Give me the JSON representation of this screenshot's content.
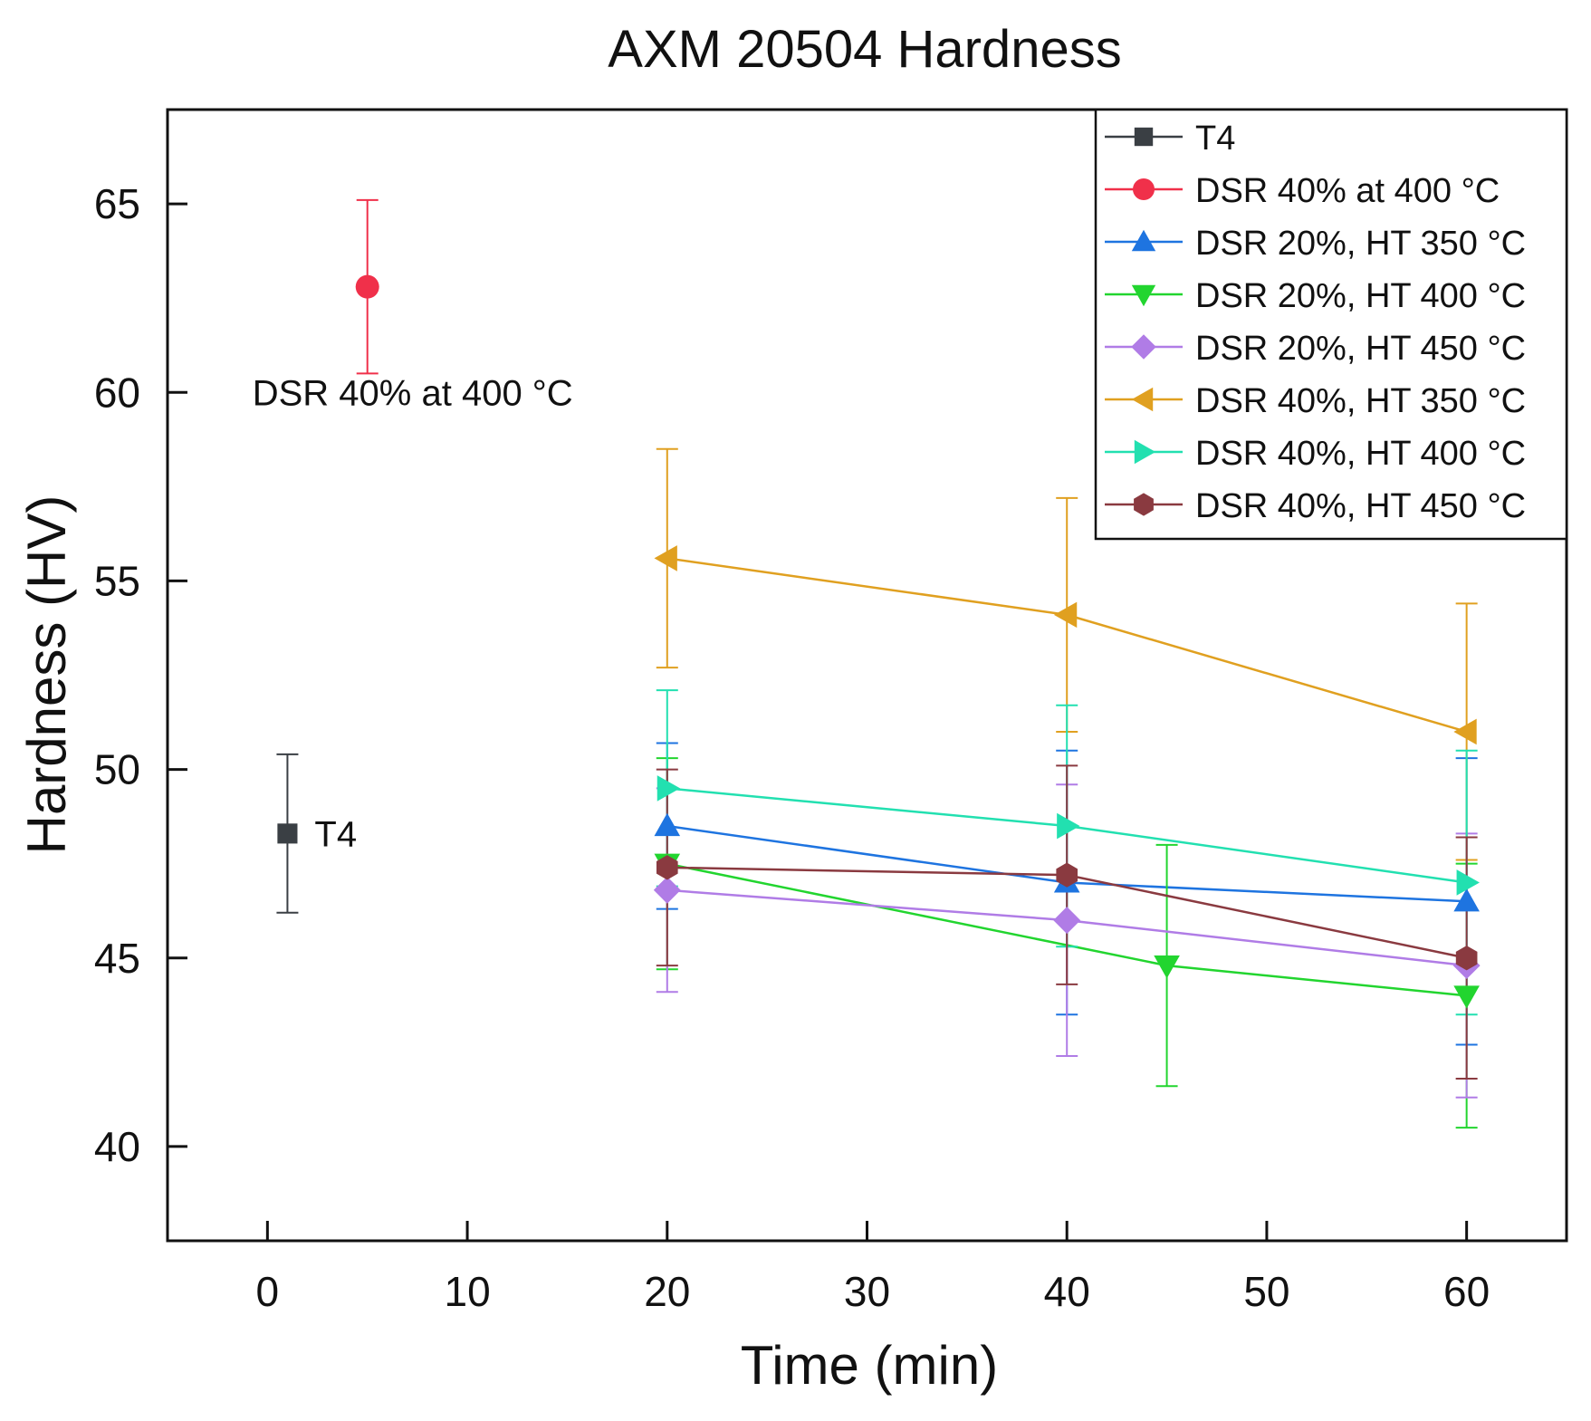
{
  "chart_data": {
    "type": "line",
    "title": "AXM 20504 Hardness",
    "xlabel": "Time (min)",
    "ylabel": "Hardness (HV)",
    "xlim": [
      -5,
      65
    ],
    "ylim": [
      37.5,
      67.5
    ],
    "xticks": [
      0,
      10,
      20,
      30,
      40,
      50,
      60
    ],
    "yticks": [
      40,
      45,
      50,
      55,
      60,
      65
    ],
    "legend_position": "top-right",
    "series": [
      {
        "name": "T4",
        "color": "#3a3f44",
        "marker": "square",
        "points": [
          {
            "x": 1,
            "y": 48.3,
            "err_low": 2.1,
            "err_high": 2.1
          }
        ]
      },
      {
        "name": "DSR 40% at 400 °C",
        "color": "#f0304a",
        "marker": "circle",
        "points": [
          {
            "x": 5,
            "y": 62.8,
            "err_low": 2.3,
            "err_high": 2.3
          }
        ]
      },
      {
        "name": "DSR 20%, HT 350 °C",
        "color": "#1e74e0",
        "marker": "triangle-up",
        "points": [
          {
            "x": 20,
            "y": 48.5,
            "err_low": 2.2,
            "err_high": 2.2
          },
          {
            "x": 40,
            "y": 47.0,
            "err_low": 3.5,
            "err_high": 3.5
          },
          {
            "x": 60,
            "y": 46.5,
            "err_low": 3.8,
            "err_high": 3.8
          }
        ]
      },
      {
        "name": "DSR 20%, HT 400 °C",
        "color": "#22d52f",
        "marker": "triangle-down",
        "points": [
          {
            "x": 20,
            "y": 47.5,
            "err_low": 2.8,
            "err_high": 2.8
          },
          {
            "x": 45,
            "y": 44.8,
            "err_low": 3.2,
            "err_high": 3.2
          },
          {
            "x": 60,
            "y": 44.0,
            "err_low": 3.5,
            "err_high": 3.5
          }
        ]
      },
      {
        "name": "DSR 20%, HT 450 °C",
        "color": "#b07ce6",
        "marker": "diamond",
        "points": [
          {
            "x": 20,
            "y": 46.8,
            "err_low": 2.7,
            "err_high": 2.7
          },
          {
            "x": 40,
            "y": 46.0,
            "err_low": 3.6,
            "err_high": 3.6
          },
          {
            "x": 60,
            "y": 44.8,
            "err_low": 3.5,
            "err_high": 3.5
          }
        ]
      },
      {
        "name": "DSR 40%, HT 350 °C",
        "color": "#e0a020",
        "marker": "triangle-left",
        "points": [
          {
            "x": 20,
            "y": 55.6,
            "err_low": 2.9,
            "err_high": 2.9
          },
          {
            "x": 40,
            "y": 54.1,
            "err_low": 3.1,
            "err_high": 3.1
          },
          {
            "x": 60,
            "y": 51.0,
            "err_low": 3.4,
            "err_high": 3.4
          }
        ]
      },
      {
        "name": "DSR 40%, HT 400 °C",
        "color": "#22e0b0",
        "marker": "triangle-right",
        "points": [
          {
            "x": 20,
            "y": 49.5,
            "err_low": 2.6,
            "err_high": 2.6
          },
          {
            "x": 40,
            "y": 48.5,
            "err_low": 3.2,
            "err_high": 3.2
          },
          {
            "x": 60,
            "y": 47.0,
            "err_low": 3.5,
            "err_high": 3.5
          }
        ]
      },
      {
        "name": "DSR 40%, HT 450 °C",
        "color": "#8a3a40",
        "marker": "hexagon",
        "points": [
          {
            "x": 20,
            "y": 47.4,
            "err_low": 2.6,
            "err_high": 2.6
          },
          {
            "x": 40,
            "y": 47.2,
            "err_low": 2.9,
            "err_high": 2.9
          },
          {
            "x": 60,
            "y": 45.0,
            "err_low": 3.2,
            "err_high": 3.2
          }
        ]
      }
    ],
    "annotations": [
      {
        "text": "DSR 40% at 400 °C",
        "series": 1
      },
      {
        "text": "T4",
        "series": 0
      }
    ]
  }
}
